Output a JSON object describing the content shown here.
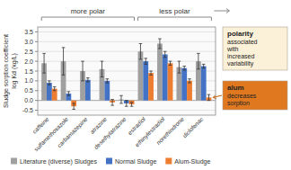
{
  "chart_data": {
    "type": "bar",
    "categories": [
      "caffeine",
      "sulfamethoxazole",
      "carbamazepine",
      "atrazine",
      "desethylatrazine",
      "estradiol",
      "ethinylestradiol",
      "norethindrone",
      "diclofenac"
    ],
    "series": [
      {
        "name": "Literature (diverse) Sludges",
        "color": "#A0A0A0",
        "values": [
          1.9,
          2.0,
          1.5,
          1.6,
          0.05,
          2.5,
          2.9,
          1.7,
          2.0
        ],
        "errors": [
          0.5,
          0.7,
          0.5,
          0.4,
          0.2,
          0.4,
          0.25,
          0.3,
          0.4
        ]
      },
      {
        "name": "Normal Sludge",
        "color": "#4472C4",
        "values": [
          0.9,
          0.35,
          1.05,
          1.0,
          -0.15,
          2.0,
          2.35,
          1.65,
          1.75
        ],
        "errors": [
          0.1,
          0.1,
          0.1,
          0.1,
          0.15,
          0.15,
          0.15,
          0.1,
          0.1
        ]
      },
      {
        "name": "Alum-Sludge",
        "color": "#ED7D31",
        "values": [
          0.6,
          -0.3,
          null,
          -0.1,
          -0.2,
          1.4,
          1.9,
          1.0,
          0.15
        ],
        "errors": [
          0.1,
          0.15,
          0.0,
          0.15,
          0.1,
          0.1,
          0.1,
          0.1,
          0.15
        ]
      }
    ],
    "ylabel": "Sludge sorption coefficient\nlog Kd (kg/L)",
    "ylim": [
      -0.75,
      3.75
    ],
    "yticks": [
      -0.5,
      {
        "value": 0,
        "label": "0.0"
      },
      0.5,
      {
        "value": 1,
        "label": "1.0"
      },
      1.5,
      {
        "value": 2,
        "label": "2.0"
      },
      2.5,
      {
        "value": 3,
        "label": "3.0"
      },
      3.5
    ],
    "grid": true,
    "legend": "bottom",
    "annotations": [
      {
        "text": "more polar",
        "from": "caffeine",
        "to": "desethylatrazine"
      },
      {
        "text": "less polar",
        "from": "estradiol",
        "to": "diclofenac",
        "arrow": "right"
      },
      {
        "title": "polarity",
        "text": "associated\nwith\nincreased\nvariability",
        "color": "#FBF0D8"
      },
      {
        "title": "alum",
        "text": "decreases\nsorption",
        "color": "#E07820",
        "target": "diclofenac"
      }
    ]
  }
}
